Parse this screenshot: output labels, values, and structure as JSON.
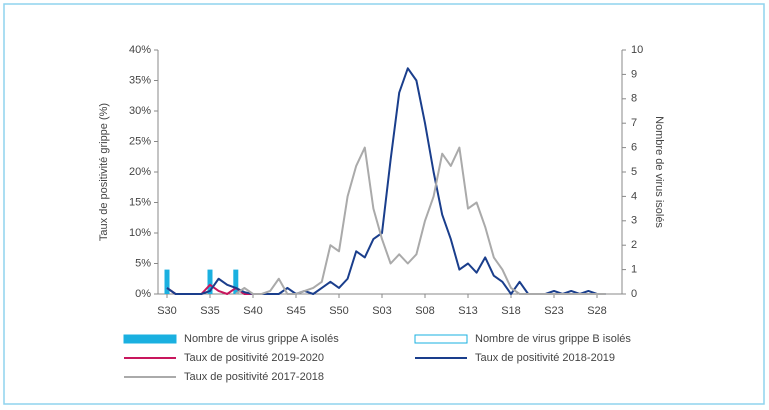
{
  "chart_data": {
    "type": "combo",
    "y_label": "Taux de positivité grippe (%)",
    "y2_label": "Nombre de virus isolés",
    "categories": [
      "S30",
      null,
      null,
      null,
      null,
      "S35",
      null,
      null,
      null,
      null,
      "S40",
      null,
      null,
      null,
      null,
      "S45",
      null,
      null,
      null,
      null,
      "S50",
      null,
      null,
      null,
      null,
      "S03",
      null,
      null,
      null,
      null,
      "S08",
      null,
      null,
      null,
      null,
      "S13",
      null,
      null,
      null,
      null,
      "S18",
      null,
      null,
      null,
      null,
      "S23",
      null,
      null,
      null,
      null,
      "S28",
      null
    ],
    "ylim": [
      0,
      40
    ],
    "yticks": [
      {
        "value": 0,
        "label": "0%"
      },
      {
        "value": 5,
        "label": "5%"
      },
      {
        "value": 10,
        "label": "10%"
      },
      {
        "value": 15,
        "label": "15%"
      },
      {
        "value": 20,
        "label": "20%"
      },
      {
        "value": 25,
        "label": "25%"
      },
      {
        "value": 30,
        "label": "30%"
      },
      {
        "value": 35,
        "label": "35%"
      },
      {
        "value": 40,
        "label": "40%"
      }
    ],
    "y2lim": [
      0,
      10
    ],
    "y2ticks": [
      0,
      1,
      2,
      3,
      4,
      5,
      6,
      7,
      8,
      9,
      10
    ],
    "series": [
      {
        "name": "Nombre de virus grippe A isolés",
        "type": "bar",
        "axis": "y2",
        "color": "#1ab0e0",
        "filled": true,
        "values": [
          1,
          0,
          0,
          0,
          0,
          1,
          0,
          0,
          1,
          0,
          0,
          0,
          0,
          0,
          0,
          0,
          0,
          0,
          0,
          0,
          0,
          0,
          0,
          0,
          0,
          0,
          0,
          0,
          0,
          0,
          0,
          0,
          0,
          0,
          0,
          0,
          0,
          0,
          0,
          0,
          0,
          0,
          0,
          0,
          0,
          0,
          0,
          0,
          0,
          0,
          0,
          0
        ]
      },
      {
        "name": "Nombre de virus grippe B isolés",
        "type": "bar",
        "axis": "y2",
        "color": "#1ab0e0",
        "filled": false,
        "values": [
          0,
          0,
          0,
          0,
          0,
          0,
          0,
          0,
          0,
          0,
          0,
          0,
          0,
          0,
          0,
          0,
          0,
          0,
          0,
          0,
          0,
          0,
          0,
          0,
          0,
          0,
          0,
          0,
          0,
          0,
          0,
          0,
          0,
          0,
          0,
          0,
          0,
          0,
          0,
          0,
          0,
          0,
          0,
          0,
          0,
          0,
          0,
          0,
          0,
          0,
          0,
          0
        ]
      },
      {
        "name": "Taux de positivité 2019-2020",
        "type": "line",
        "color": "#c8175d",
        "values": [
          1,
          0,
          0,
          0,
          0,
          1.5,
          0.5,
          0,
          1,
          0,
          0,
          null,
          null,
          null,
          null,
          null,
          null,
          null,
          null,
          null,
          null,
          null,
          null,
          null,
          null,
          null,
          null,
          null,
          null,
          null,
          null,
          null,
          null,
          null,
          null,
          null,
          null,
          null,
          null,
          null,
          null,
          null,
          null,
          null,
          null,
          null,
          null,
          null,
          null,
          null,
          null,
          null
        ]
      },
      {
        "name": "Taux de positivité 2018-2019",
        "type": "line",
        "color": "#1a3e8c",
        "values": [
          1,
          0,
          0,
          0,
          0,
          0.5,
          2.5,
          1.5,
          1,
          0.3,
          0,
          0,
          0,
          0,
          1,
          0,
          0.5,
          0,
          1,
          2,
          1,
          2.5,
          7,
          6,
          9,
          10,
          22,
          33,
          37,
          35,
          28,
          20,
          13,
          9,
          4,
          5,
          3.5,
          6,
          3,
          2,
          0,
          2,
          0,
          0,
          0,
          0.5,
          0,
          0.5,
          0,
          0.5,
          0,
          0
        ]
      },
      {
        "name": "Taux de positivité 2017-2018",
        "type": "line",
        "color": "#aaaaaa",
        "values": [
          null,
          null,
          null,
          null,
          null,
          null,
          null,
          null,
          0,
          1,
          0,
          0,
          0.5,
          2.5,
          0,
          0,
          0.5,
          1,
          2,
          8,
          7,
          16,
          21,
          24,
          14,
          9,
          5,
          6.5,
          5,
          6.5,
          12,
          16,
          23,
          21,
          24,
          14,
          15,
          11,
          6,
          4,
          1,
          0,
          0,
          0,
          0,
          0,
          0,
          0,
          0,
          0,
          0,
          0
        ]
      }
    ]
  }
}
